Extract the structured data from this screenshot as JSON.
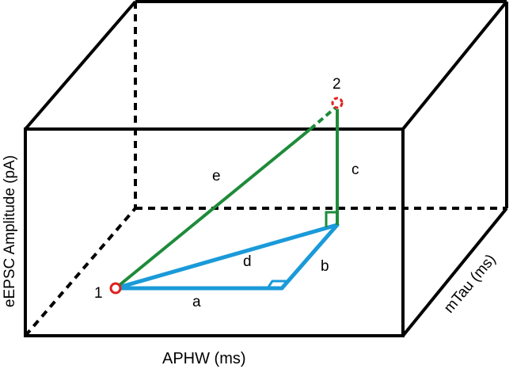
{
  "points": {
    "p1": "1",
    "p2": "2"
  },
  "segments": {
    "a": "a",
    "b": "b",
    "c": "c",
    "d": "d",
    "e": "e"
  },
  "axes": {
    "x_label": "APHW (ms)",
    "y_label": "eEPSC Amplitude (pA)",
    "z_label": "mTau (ms)"
  },
  "colors": {
    "box": "#000000",
    "blue": "#1a9ad9",
    "green": "#1e8b3a",
    "red": "#e02020"
  }
}
